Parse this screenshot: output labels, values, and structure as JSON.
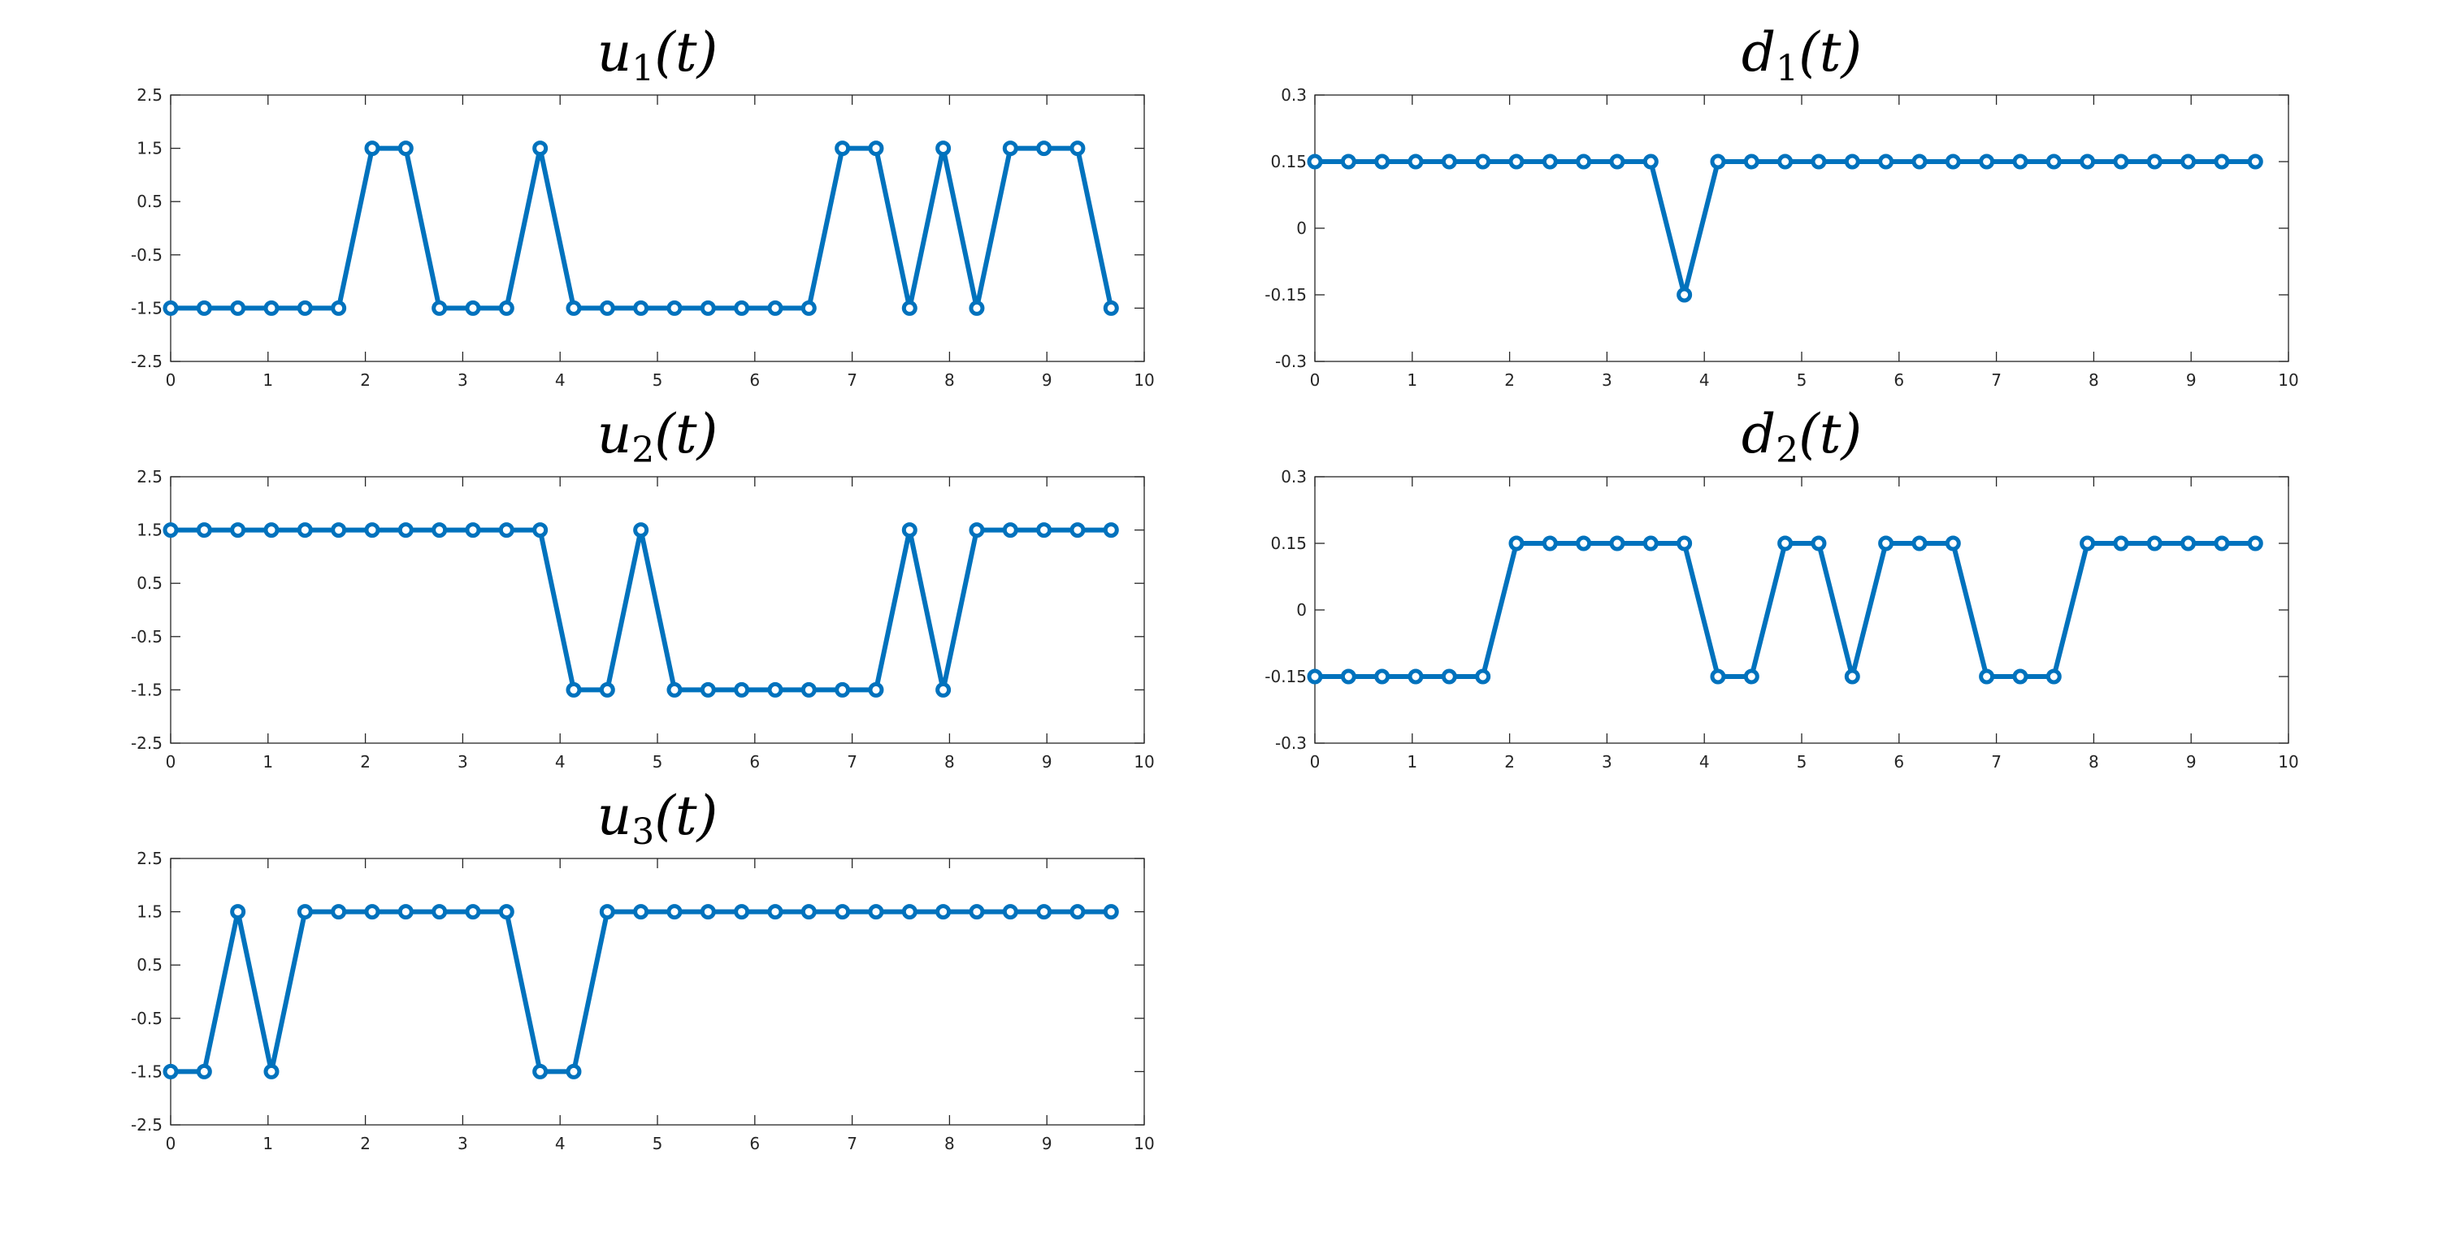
{
  "chart_data": [
    {
      "type": "line",
      "title": "u1(t)",
      "title_var": "u",
      "title_sub": "1",
      "xlim": [
        0,
        10
      ],
      "ylim": [
        -2.5,
        2.5
      ],
      "xticks": [
        0,
        1,
        2,
        3,
        4,
        5,
        6,
        7,
        8,
        9,
        10
      ],
      "yticks": [
        -2.5,
        -1.5,
        -0.5,
        0.5,
        1.5,
        2.5
      ],
      "ytick_labels": [
        "-2.5",
        "-1.5",
        "-0.5",
        "0.5",
        "1.5",
        "2.5"
      ],
      "grid": false,
      "color": "#0072BD",
      "x": [
        0,
        0.345,
        0.69,
        1.035,
        1.38,
        1.725,
        2.07,
        2.415,
        2.76,
        3.105,
        3.45,
        3.795,
        4.14,
        4.485,
        4.83,
        5.175,
        5.52,
        5.865,
        6.21,
        6.555,
        6.9,
        7.245,
        7.59,
        7.935,
        8.28,
        8.625,
        8.97,
        9.315,
        9.66
      ],
      "y": [
        -1.5,
        -1.5,
        -1.5,
        -1.5,
        -1.5,
        -1.5,
        1.5,
        1.5,
        -1.5,
        -1.5,
        -1.5,
        1.5,
        -1.5,
        -1.5,
        -1.5,
        -1.5,
        -1.5,
        -1.5,
        -1.5,
        -1.5,
        1.5,
        1.5,
        -1.5,
        1.5,
        -1.5,
        1.5,
        1.5,
        1.5,
        -1.5
      ]
    },
    {
      "type": "line",
      "title": "d1(t)",
      "title_var": "d",
      "title_sub": "1",
      "xlim": [
        0,
        10
      ],
      "ylim": [
        -0.3,
        0.3
      ],
      "xticks": [
        0,
        1,
        2,
        3,
        4,
        5,
        6,
        7,
        8,
        9,
        10
      ],
      "yticks": [
        -0.3,
        -0.15,
        0,
        0.15,
        0.3
      ],
      "ytick_labels": [
        "-0.3",
        "-0.15",
        "0",
        "0.15",
        "0.3"
      ],
      "grid": false,
      "color": "#0072BD",
      "x": [
        0,
        0.345,
        0.69,
        1.035,
        1.38,
        1.725,
        2.07,
        2.415,
        2.76,
        3.105,
        3.45,
        3.795,
        4.14,
        4.485,
        4.83,
        5.175,
        5.52,
        5.865,
        6.21,
        6.555,
        6.9,
        7.245,
        7.59,
        7.935,
        8.28,
        8.625,
        8.97,
        9.315,
        9.66
      ],
      "y": [
        0.15,
        0.15,
        0.15,
        0.15,
        0.15,
        0.15,
        0.15,
        0.15,
        0.15,
        0.15,
        0.15,
        -0.15,
        0.15,
        0.15,
        0.15,
        0.15,
        0.15,
        0.15,
        0.15,
        0.15,
        0.15,
        0.15,
        0.15,
        0.15,
        0.15,
        0.15,
        0.15,
        0.15,
        0.15
      ]
    },
    {
      "type": "line",
      "title": "u2(t)",
      "title_var": "u",
      "title_sub": "2",
      "xlim": [
        0,
        10
      ],
      "ylim": [
        -2.5,
        2.5
      ],
      "xticks": [
        0,
        1,
        2,
        3,
        4,
        5,
        6,
        7,
        8,
        9,
        10
      ],
      "yticks": [
        -2.5,
        -1.5,
        -0.5,
        0.5,
        1.5,
        2.5
      ],
      "ytick_labels": [
        "-2.5",
        "-1.5",
        "-0.5",
        "0.5",
        "1.5",
        "2.5"
      ],
      "grid": false,
      "color": "#0072BD",
      "x": [
        0,
        0.345,
        0.69,
        1.035,
        1.38,
        1.725,
        2.07,
        2.415,
        2.76,
        3.105,
        3.45,
        3.795,
        4.14,
        4.485,
        4.83,
        5.175,
        5.52,
        5.865,
        6.21,
        6.555,
        6.9,
        7.245,
        7.59,
        7.935,
        8.28,
        8.625,
        8.97,
        9.315,
        9.66
      ],
      "y": [
        1.5,
        1.5,
        1.5,
        1.5,
        1.5,
        1.5,
        1.5,
        1.5,
        1.5,
        1.5,
        1.5,
        1.5,
        -1.5,
        -1.5,
        1.5,
        -1.5,
        -1.5,
        -1.5,
        -1.5,
        -1.5,
        -1.5,
        -1.5,
        1.5,
        -1.5,
        1.5,
        1.5,
        1.5,
        1.5,
        1.5
      ]
    },
    {
      "type": "line",
      "title": "d2(t)",
      "title_var": "d",
      "title_sub": "2",
      "xlim": [
        0,
        10
      ],
      "ylim": [
        -0.3,
        0.3
      ],
      "xticks": [
        0,
        1,
        2,
        3,
        4,
        5,
        6,
        7,
        8,
        9,
        10
      ],
      "yticks": [
        -0.3,
        -0.15,
        0,
        0.15,
        0.3
      ],
      "ytick_labels": [
        "-0.3",
        "-0.15",
        "0",
        "0.15",
        "0.3"
      ],
      "grid": false,
      "color": "#0072BD",
      "x": [
        0,
        0.345,
        0.69,
        1.035,
        1.38,
        1.725,
        2.07,
        2.415,
        2.76,
        3.105,
        3.45,
        3.795,
        4.14,
        4.485,
        4.83,
        5.175,
        5.52,
        5.865,
        6.21,
        6.555,
        6.9,
        7.245,
        7.59,
        7.935,
        8.28,
        8.625,
        8.97,
        9.315,
        9.66
      ],
      "y": [
        -0.15,
        -0.15,
        -0.15,
        -0.15,
        -0.15,
        -0.15,
        0.15,
        0.15,
        0.15,
        0.15,
        0.15,
        0.15,
        -0.15,
        -0.15,
        0.15,
        0.15,
        -0.15,
        0.15,
        0.15,
        0.15,
        -0.15,
        -0.15,
        -0.15,
        0.15,
        0.15,
        0.15,
        0.15,
        0.15,
        0.15
      ]
    },
    {
      "type": "line",
      "title": "u3(t)",
      "title_var": "u",
      "title_sub": "3",
      "xlim": [
        0,
        10
      ],
      "ylim": [
        -2.5,
        2.5
      ],
      "xticks": [
        0,
        1,
        2,
        3,
        4,
        5,
        6,
        7,
        8,
        9,
        10
      ],
      "yticks": [
        -2.5,
        -1.5,
        -0.5,
        0.5,
        1.5,
        2.5
      ],
      "ytick_labels": [
        "-2.5",
        "-1.5",
        "-0.5",
        "0.5",
        "1.5",
        "2.5"
      ],
      "grid": false,
      "color": "#0072BD",
      "x": [
        0,
        0.345,
        0.69,
        1.035,
        1.38,
        1.725,
        2.07,
        2.415,
        2.76,
        3.105,
        3.45,
        3.795,
        4.14,
        4.485,
        4.83,
        5.175,
        5.52,
        5.865,
        6.21,
        6.555,
        6.9,
        7.245,
        7.59,
        7.935,
        8.28,
        8.625,
        8.97,
        9.315,
        9.66
      ],
      "y": [
        -1.5,
        -1.5,
        1.5,
        -1.5,
        1.5,
        1.5,
        1.5,
        1.5,
        1.5,
        1.5,
        1.5,
        -1.5,
        -1.5,
        1.5,
        1.5,
        1.5,
        1.5,
        1.5,
        1.5,
        1.5,
        1.5,
        1.5,
        1.5,
        1.5,
        1.5,
        1.5,
        1.5,
        1.5,
        1.5
      ]
    }
  ]
}
